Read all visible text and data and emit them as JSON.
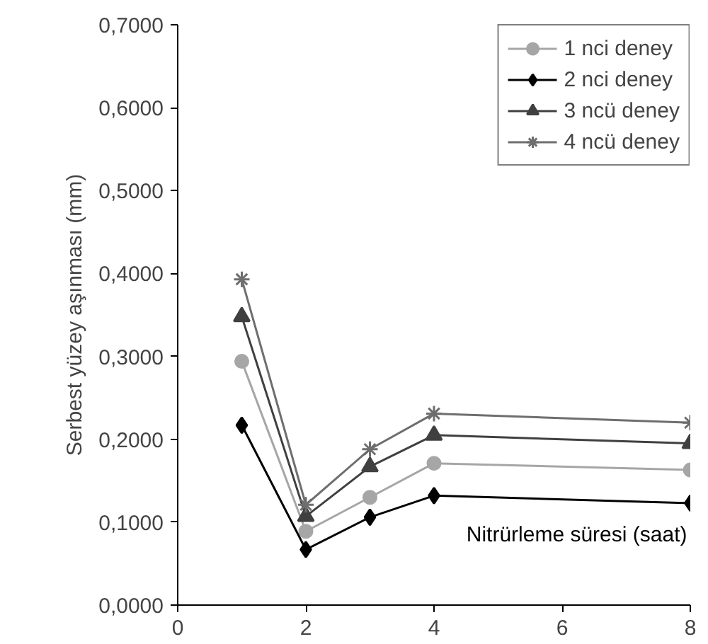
{
  "chart_data": {
    "type": "line",
    "xlabel": "Nitrürleme süresi (saat)",
    "ylabel": "Serbest yüzey aşınması (mm)",
    "x": [
      1,
      2,
      3,
      4,
      8
    ],
    "xlim": [
      0,
      8
    ],
    "xticks": [
      0,
      2,
      4,
      6,
      8
    ],
    "ylim": [
      0,
      0.7
    ],
    "yticks": [
      {
        "value": 0,
        "label": "0,0000"
      },
      {
        "value": 0.1,
        "label": "0,1000"
      },
      {
        "value": 0.2,
        "label": "0,2000"
      },
      {
        "value": 0.3,
        "label": "0,3000"
      },
      {
        "value": 0.4,
        "label": "0,4000"
      },
      {
        "value": 0.5,
        "label": "0,5000"
      },
      {
        "value": 0.6,
        "label": "0,6000"
      },
      {
        "value": 0.7,
        "label": "0,7000"
      }
    ],
    "grid": false,
    "legend": "top right",
    "series": [
      {
        "name": "1 nci deney",
        "color": "#a6a6a6",
        "marker": "circle",
        "values": [
          0.294,
          0.089,
          0.13,
          0.171,
          0.163
        ]
      },
      {
        "name": "2 nci deney",
        "color": "#000000",
        "marker": "diamond",
        "values": [
          0.217,
          0.067,
          0.106,
          0.132,
          0.123
        ]
      },
      {
        "name": "3 ncü deney",
        "color": "#404040",
        "marker": "triangle",
        "values": [
          0.348,
          0.107,
          0.167,
          0.205,
          0.195
        ]
      },
      {
        "name": "4 ncü deney",
        "color": "#6e6e6e",
        "marker": "cross",
        "values": [
          0.393,
          0.121,
          0.188,
          0.231,
          0.22
        ]
      }
    ]
  }
}
